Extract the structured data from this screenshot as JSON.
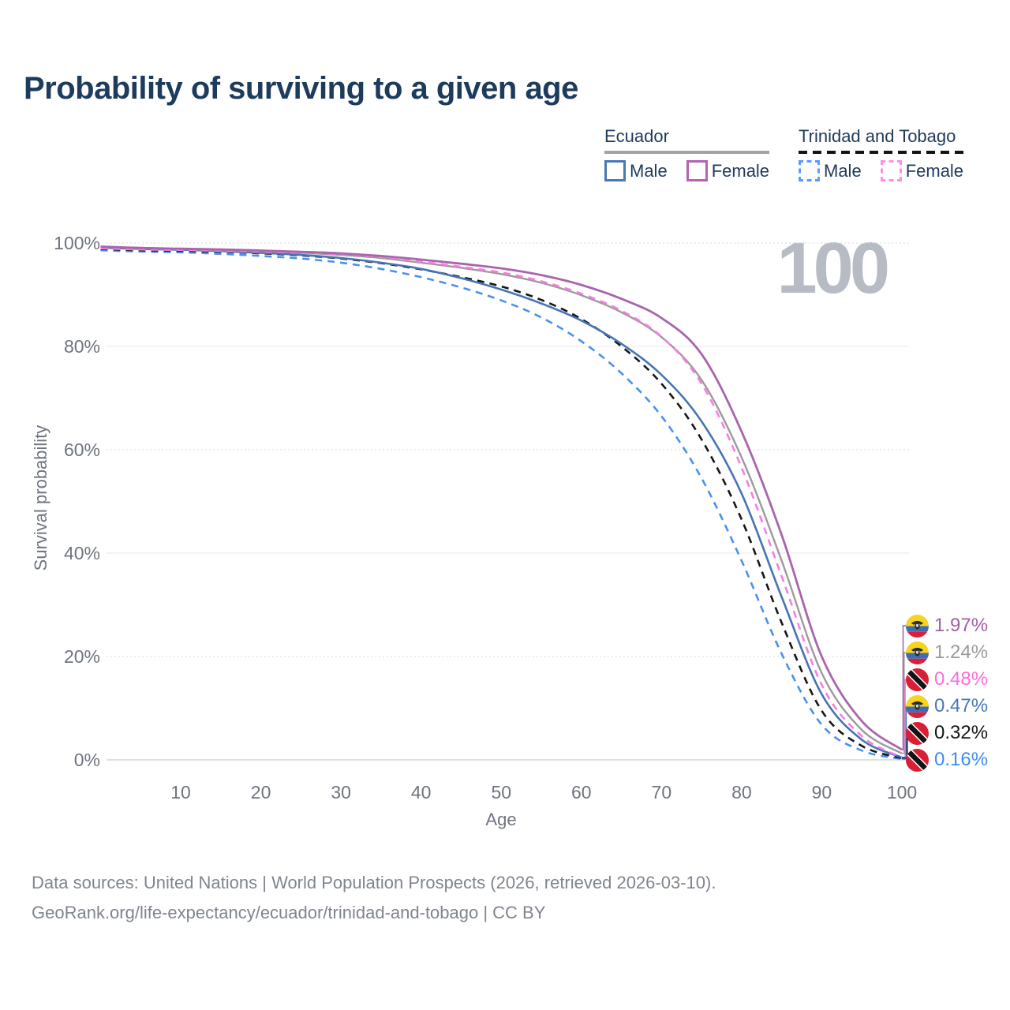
{
  "header": {
    "title": "Probability of surviving to a given age"
  },
  "watermark": "100",
  "legend": {
    "groups": [
      {
        "title": "Ecuador",
        "style": "solid",
        "underline_color": "#a3a3a3",
        "items": [
          {
            "label": "Male",
            "color": "#4a78b5",
            "dashed": false
          },
          {
            "label": "Female",
            "color": "#b165ae",
            "dashed": false
          }
        ]
      },
      {
        "title": "Trinidad and Tobago",
        "style": "dashed",
        "underline_color": "#141414",
        "items": [
          {
            "label": "Male",
            "color": "#5c9aff",
            "dashed": true
          },
          {
            "label": "Female",
            "color": "#ff8fe3",
            "dashed": true
          }
        ]
      }
    ]
  },
  "chart_data": {
    "type": "line",
    "title": "Probability of surviving to a given age",
    "xlabel": "Age",
    "ylabel": "Survival probability",
    "xlim": [
      0,
      100
    ],
    "ylim": [
      0,
      100
    ],
    "grid": true,
    "legend_position": "top-right",
    "x_ticks": [
      10,
      20,
      30,
      40,
      50,
      60,
      70,
      80,
      90,
      100
    ],
    "y_ticks": [
      0,
      20,
      40,
      60,
      80,
      100
    ],
    "y_tick_suffix": "%",
    "x": [
      0,
      5,
      10,
      15,
      20,
      25,
      30,
      35,
      40,
      45,
      50,
      55,
      60,
      65,
      70,
      75,
      80,
      85,
      90,
      95,
      100
    ],
    "series": [
      {
        "key": "tt_male",
        "name": "Trinidad and Tobago — Male",
        "country": "Trinidad and Tobago",
        "sex": "Male",
        "color": "#4a90f0",
        "dash": true,
        "stroke_width": 2.6,
        "values": [
          98.6,
          98.35,
          98.2,
          97.9,
          97.5,
          97.0,
          96.2,
          95.0,
          93.4,
          91.4,
          88.9,
          85.6,
          81.0,
          74.8,
          66.5,
          54.5,
          38.5,
          20.5,
          6.8,
          1.8,
          0.16
        ]
      },
      {
        "key": "tt_total",
        "name": "Trinidad and Tobago — Both sexes",
        "country": "Trinidad and Tobago",
        "sex": "Both sexes",
        "color": "#161616",
        "dash": true,
        "stroke_width": 2.6,
        "values": [
          98.85,
          98.6,
          98.5,
          98.3,
          98.0,
          97.6,
          97.0,
          96.1,
          94.9,
          93.4,
          91.6,
          89.0,
          85.3,
          80.0,
          72.8,
          62.0,
          46.5,
          26.5,
          9.5,
          2.7,
          0.32
        ]
      },
      {
        "key": "ec_male",
        "name": "Ecuador — Male",
        "country": "Ecuador",
        "sex": "Male",
        "color": "#4674b4",
        "dash": false,
        "stroke_width": 2.6,
        "values": [
          99.1,
          98.85,
          98.7,
          98.45,
          98.1,
          97.7,
          97.1,
          96.2,
          95.0,
          93.2,
          91.0,
          88.3,
          85.0,
          80.5,
          74.5,
          65.5,
          51.5,
          31.5,
          12.7,
          3.9,
          0.47
        ]
      },
      {
        "key": "ec_total",
        "name": "Ecuador — Both sexes",
        "country": "Ecuador",
        "sex": "Both sexes",
        "color": "#9b9b9b",
        "dash": false,
        "stroke_width": 2.4,
        "values": [
          99.2,
          98.95,
          98.8,
          98.6,
          98.4,
          98.1,
          97.7,
          97.1,
          96.2,
          95.2,
          94.0,
          92.3,
          89.9,
          86.6,
          81.8,
          73.5,
          58.5,
          38.5,
          16.8,
          5.8,
          1.24
        ]
      },
      {
        "key": "tt_female",
        "name": "Trinidad and Tobago — Female",
        "country": "Trinidad and Tobago",
        "sex": "Female",
        "color": "#fb7ce0",
        "dash": true,
        "stroke_width": 2.6,
        "values": [
          98.95,
          98.75,
          98.65,
          98.5,
          98.35,
          98.15,
          97.85,
          97.3,
          96.4,
          95.4,
          94.3,
          92.6,
          90.2,
          86.9,
          81.9,
          72.8,
          56.5,
          35.5,
          14.5,
          4.6,
          0.48
        ]
      },
      {
        "key": "ec_female",
        "name": "Ecuador — Female",
        "country": "Ecuador",
        "sex": "Female",
        "color": "#a864ad",
        "dash": false,
        "stroke_width": 2.8,
        "values": [
          99.3,
          99.05,
          98.9,
          98.75,
          98.55,
          98.3,
          98.0,
          97.5,
          96.8,
          96.0,
          95.1,
          93.8,
          91.9,
          89.2,
          85.5,
          78.5,
          63.5,
          43.5,
          20.0,
          7.5,
          1.97
        ]
      }
    ],
    "end_labels": [
      {
        "series": "ec_female",
        "value": "1.97%",
        "flag": "ecuador",
        "color": "#a15fa5"
      },
      {
        "series": "ec_total",
        "value": "1.24%",
        "flag": "ecuador",
        "color": "#9b9b9b"
      },
      {
        "series": "tt_female",
        "value": "0.48%",
        "flag": "trinidad",
        "color": "#fb6ede"
      },
      {
        "series": "ec_male",
        "value": "0.47%",
        "flag": "ecuador",
        "color": "#4a78b5"
      },
      {
        "series": "tt_total",
        "value": "0.32%",
        "flag": "trinidad",
        "color": "#161616"
      },
      {
        "series": "tt_male",
        "value": "0.16%",
        "flag": "trinidad",
        "color": "#3f8cf2"
      }
    ]
  },
  "footer": {
    "line1": "Data sources: United Nations | World Population Prospects (2026, retrieved 2026-03-10).",
    "link_text": "GeoRank.org/life-expectancy/ecuador/trinidad-and-tobago",
    "license_suffix": " | CC BY"
  }
}
